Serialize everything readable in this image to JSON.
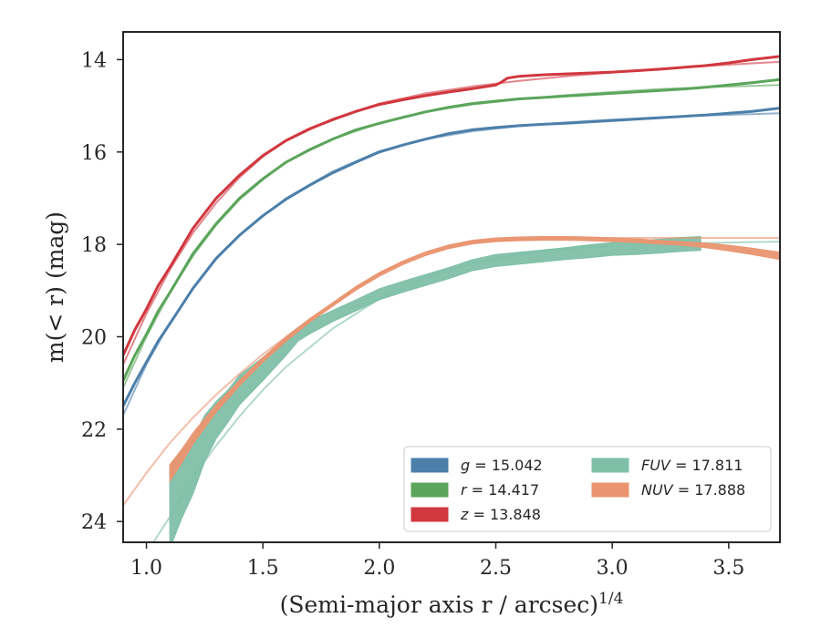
{
  "chart_data": {
    "type": "line",
    "xlabel": "(Semi-major axis r / arcsec)",
    "xlabel_sup": "1/4",
    "ylabel": "m(< r) (mag)",
    "xlim": [
      0.9,
      3.72
    ],
    "ylim": [
      24.45,
      13.4
    ],
    "y_inverted": true,
    "x_ticks": [
      1.0,
      1.5,
      2.0,
      2.5,
      3.0,
      3.5
    ],
    "x_tick_labels": [
      "1.0",
      "1.5",
      "2.0",
      "2.5",
      "3.0",
      "3.5"
    ],
    "y_ticks": [
      14,
      16,
      18,
      20,
      22,
      24
    ],
    "y_tick_labels": [
      "14",
      "16",
      "18",
      "20",
      "22",
      "24"
    ],
    "grid": false,
    "legend_position": "lower-right",
    "series": [
      {
        "name": "g = 15.042",
        "color": "#4c7faa",
        "data_band": {
          "x": [
            0.9,
            0.95,
            1.0,
            1.05,
            1.1,
            1.2,
            1.3,
            1.4,
            1.5,
            1.6,
            1.7,
            1.8,
            1.9,
            2.0,
            2.1,
            2.2,
            2.3,
            2.4,
            2.5,
            2.6,
            2.7,
            2.8,
            2.9,
            3.0,
            3.1,
            3.2,
            3.3,
            3.4,
            3.5,
            3.6,
            3.72
          ],
          "y": [
            21.5,
            21.0,
            20.55,
            20.1,
            19.72,
            18.95,
            18.3,
            17.8,
            17.38,
            17.02,
            16.72,
            16.45,
            16.22,
            16.0,
            15.85,
            15.72,
            15.6,
            15.52,
            15.47,
            15.43,
            15.4,
            15.38,
            15.35,
            15.32,
            15.29,
            15.26,
            15.23,
            15.2,
            15.16,
            15.12,
            15.05
          ]
        },
        "fit": {
          "x": [
            0.9,
            1.0,
            1.1,
            1.2,
            1.3,
            1.4,
            1.5,
            1.6,
            1.8,
            2.0,
            2.2,
            2.4,
            2.6,
            2.8,
            3.0,
            3.2,
            3.4,
            3.6,
            3.72
          ],
          "y": [
            21.7,
            20.6,
            19.7,
            18.95,
            18.32,
            17.8,
            17.38,
            17.0,
            16.42,
            15.98,
            15.72,
            15.55,
            15.44,
            15.36,
            15.3,
            15.25,
            15.21,
            15.18,
            15.16
          ]
        }
      },
      {
        "name": "r = 14.417",
        "color": "#5ba55b",
        "data_band": {
          "x": [
            0.9,
            0.95,
            1.0,
            1.05,
            1.1,
            1.2,
            1.3,
            1.4,
            1.5,
            1.6,
            1.7,
            1.8,
            1.9,
            2.0,
            2.1,
            2.2,
            2.3,
            2.4,
            2.5,
            2.6,
            2.7,
            2.8,
            2.9,
            3.0,
            3.1,
            3.2,
            3.3,
            3.4,
            3.5,
            3.6,
            3.72
          ],
          "y": [
            20.95,
            20.4,
            19.95,
            19.45,
            19.05,
            18.2,
            17.55,
            17.0,
            16.58,
            16.22,
            15.95,
            15.72,
            15.52,
            15.38,
            15.25,
            15.13,
            15.03,
            14.95,
            14.9,
            14.85,
            14.82,
            14.79,
            14.76,
            14.73,
            14.7,
            14.67,
            14.64,
            14.6,
            14.55,
            14.5,
            14.43
          ]
        },
        "fit": {
          "x": [
            0.9,
            1.0,
            1.1,
            1.2,
            1.3,
            1.4,
            1.5,
            1.6,
            1.8,
            2.0,
            2.2,
            2.4,
            2.6,
            2.8,
            3.0,
            3.2,
            3.4,
            3.6,
            3.72
          ],
          "y": [
            21.1,
            20.0,
            19.05,
            18.25,
            17.58,
            17.03,
            16.6,
            16.22,
            15.72,
            15.38,
            15.13,
            14.97,
            14.86,
            14.77,
            14.7,
            14.64,
            14.6,
            14.57,
            14.55
          ]
        }
      },
      {
        "name": "z = 13.848",
        "color": "#d1373f",
        "data_band": {
          "x": [
            0.9,
            0.95,
            1.0,
            1.05,
            1.1,
            1.2,
            1.3,
            1.4,
            1.5,
            1.6,
            1.7,
            1.8,
            1.9,
            2.0,
            2.1,
            2.2,
            2.3,
            2.4,
            2.5,
            2.52,
            2.55,
            2.6,
            2.7,
            2.8,
            2.9,
            3.0,
            3.1,
            3.2,
            3.3,
            3.4,
            3.5,
            3.6,
            3.72
          ],
          "y": [
            20.4,
            19.85,
            19.4,
            18.9,
            18.5,
            17.65,
            17.0,
            16.5,
            16.08,
            15.75,
            15.5,
            15.3,
            15.12,
            14.97,
            14.87,
            14.78,
            14.7,
            14.63,
            14.55,
            14.5,
            14.4,
            14.36,
            14.33,
            14.31,
            14.29,
            14.27,
            14.24,
            14.21,
            14.17,
            14.13,
            14.07,
            14.0,
            13.93
          ]
        },
        "fit": {
          "x": [
            0.9,
            1.0,
            1.1,
            1.2,
            1.3,
            1.4,
            1.5,
            1.6,
            1.8,
            2.0,
            2.2,
            2.4,
            2.6,
            2.8,
            3.0,
            3.2,
            3.4,
            3.6,
            3.72
          ],
          "y": [
            20.6,
            19.5,
            18.55,
            17.75,
            17.1,
            16.55,
            16.1,
            15.76,
            15.28,
            14.95,
            14.73,
            14.58,
            14.46,
            14.36,
            14.28,
            14.2,
            14.14,
            14.08,
            14.05
          ]
        }
      },
      {
        "name": "FUV = 17.811",
        "color": "#7fbfa8",
        "data_band": {
          "x": [
            1.1,
            1.15,
            1.2,
            1.25,
            1.3,
            1.35,
            1.4,
            1.5,
            1.6,
            1.65,
            1.7,
            1.8,
            1.9,
            2.0,
            2.1,
            2.2,
            2.3,
            2.4,
            2.5,
            2.6,
            2.7,
            2.8,
            2.9,
            3.0,
            3.1,
            3.2,
            3.3,
            3.38
          ],
          "y": [
            23.7,
            23.2,
            22.8,
            22.2,
            21.8,
            21.5,
            21.15,
            20.7,
            20.2,
            19.95,
            19.8,
            19.55,
            19.32,
            19.08,
            18.92,
            18.77,
            18.62,
            18.45,
            18.35,
            18.3,
            18.25,
            18.2,
            18.15,
            18.1,
            18.07,
            18.04,
            18.0,
            17.98
          ],
          "half_width": [
            0.9,
            0.75,
            0.6,
            0.5,
            0.4,
            0.35,
            0.32,
            0.25,
            0.2,
            0.15,
            0.14,
            0.12,
            0.12,
            0.12,
            0.12,
            0.12,
            0.12,
            0.12,
            0.13,
            0.13,
            0.13,
            0.13,
            0.14,
            0.14,
            0.15,
            0.15,
            0.15,
            0.15
          ]
        },
        "fit": {
          "x": [
            1.03,
            1.1,
            1.2,
            1.3,
            1.4,
            1.5,
            1.6,
            1.8,
            2.0,
            2.2,
            2.4,
            2.6,
            2.8,
            3.0,
            3.2,
            3.4,
            3.6,
            3.72
          ],
          "y": [
            24.45,
            23.9,
            23.05,
            22.35,
            21.72,
            21.15,
            20.65,
            19.82,
            19.18,
            18.72,
            18.42,
            18.22,
            18.1,
            18.03,
            17.99,
            17.97,
            17.95,
            17.94
          ]
        }
      },
      {
        "name": "NUV = 17.888",
        "color": "#ea9570",
        "data_band": {
          "x": [
            1.1,
            1.15,
            1.2,
            1.3,
            1.4,
            1.5,
            1.6,
            1.7,
            1.8,
            1.9,
            2.0,
            2.1,
            2.2,
            2.3,
            2.4,
            2.5,
            2.6,
            2.7,
            2.8,
            2.9,
            3.0,
            3.1,
            3.2,
            3.3,
            3.4,
            3.5,
            3.6,
            3.72
          ],
          "y": [
            22.95,
            22.6,
            22.2,
            21.55,
            21.0,
            20.5,
            20.05,
            19.65,
            19.3,
            18.95,
            18.65,
            18.4,
            18.2,
            18.05,
            17.95,
            17.9,
            17.88,
            17.87,
            17.87,
            17.88,
            17.9,
            17.92,
            17.95,
            17.98,
            18.02,
            18.08,
            18.15,
            18.25
          ],
          "half_width": [
            0.18,
            0.15,
            0.12,
            0.08,
            0.06,
            0.05,
            0.05,
            0.04,
            0.04,
            0.04,
            0.04,
            0.04,
            0.04,
            0.04,
            0.04,
            0.04,
            0.04,
            0.04,
            0.04,
            0.04,
            0.04,
            0.04,
            0.04,
            0.04,
            0.05,
            0.06,
            0.07,
            0.08
          ]
        },
        "fit": {
          "x": [
            0.9,
            1.0,
            1.1,
            1.2,
            1.3,
            1.4,
            1.5,
            1.6,
            1.8,
            2.0,
            2.2,
            2.4,
            2.6,
            2.8,
            3.0,
            3.2,
            3.4,
            3.6,
            3.72
          ],
          "y": [
            23.65,
            22.95,
            22.3,
            21.75,
            21.25,
            20.8,
            20.38,
            20.0,
            19.28,
            18.62,
            18.17,
            17.95,
            17.88,
            17.86,
            17.86,
            17.86,
            17.86,
            17.86,
            17.86
          ]
        }
      }
    ],
    "legend": {
      "col1": [
        {
          "math": "g",
          "rest": " = 15.042",
          "color": "#4c7faa"
        },
        {
          "math": "r",
          "rest": " = 14.417",
          "color": "#5ba55b"
        },
        {
          "math": "z",
          "rest": " = 13.848",
          "color": "#d1373f"
        }
      ],
      "col2": [
        {
          "math": "FUV",
          "rest": " = 17.811",
          "color": "#7fbfa8"
        },
        {
          "math": "NUV",
          "rest": " = 17.888",
          "color": "#ea9570"
        }
      ]
    }
  }
}
